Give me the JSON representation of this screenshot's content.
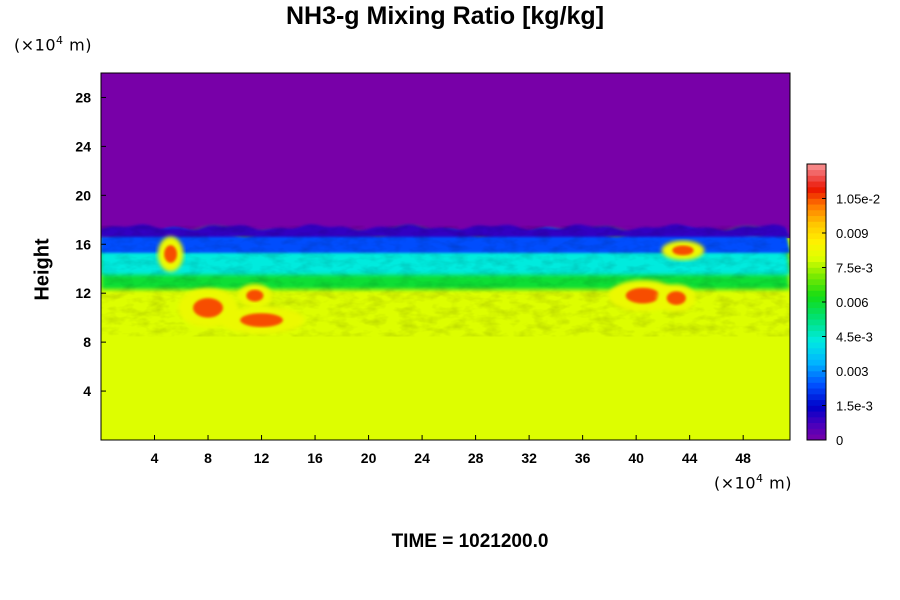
{
  "chart_data": {
    "type": "heatmap",
    "title": "NH3-g Mixing Ratio [kg/kg]",
    "ylabel": "Height",
    "xlabel": "",
    "x_unit": "(×10",
    "x_unit_exp": "4",
    "x_unit_tail": " m)",
    "y_unit": "(×10",
    "y_unit_exp": "4",
    "y_unit_tail": " m)",
    "xlim": [
      0,
      51.5
    ],
    "ylim": [
      0,
      30
    ],
    "x_ticks": [
      "4",
      "8",
      "12",
      "16",
      "20",
      "24",
      "28",
      "32",
      "36",
      "40",
      "44",
      "48"
    ],
    "y_ticks": [
      "4",
      "8",
      "12",
      "16",
      "20",
      "24",
      "28"
    ],
    "colorbar": {
      "range": [
        0,
        0.012
      ],
      "tick_labels": [
        "0",
        "1.5e-3",
        "0.003",
        "4.5e-3",
        "0.006",
        "7.5e-3",
        "0.009",
        "1.05e-2"
      ],
      "tick_values": [
        0,
        0.0015,
        0.003,
        0.0045,
        0.006,
        0.0075,
        0.009,
        0.0105
      ]
    },
    "field_summary": {
      "lower_layer_value": 0.0079,
      "upper_layer_value": 0.0,
      "transition_height": 16.5,
      "peak_value": 0.0105
    },
    "time_label": "TIME = 1021200.0"
  }
}
